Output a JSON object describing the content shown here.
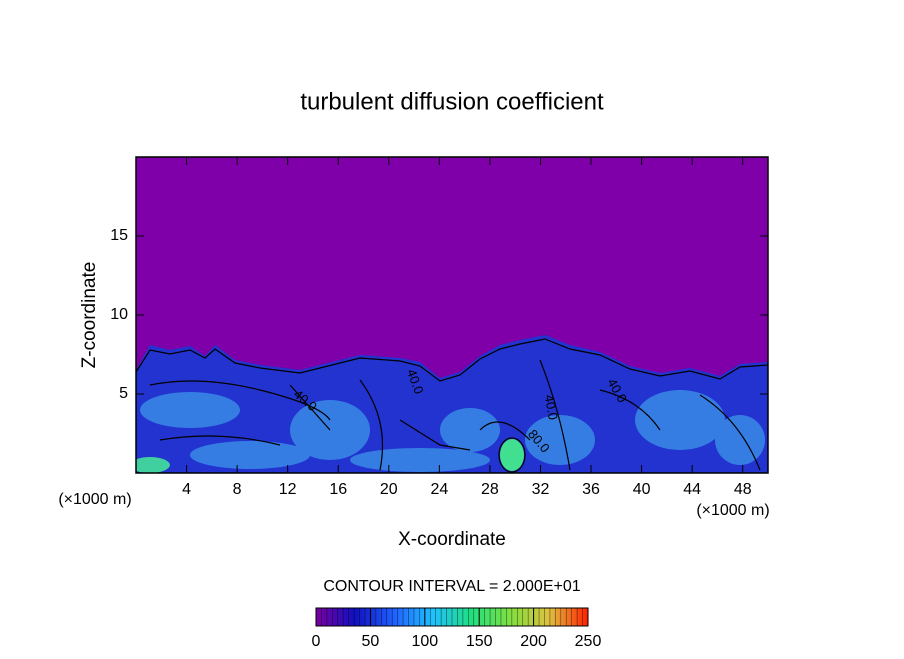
{
  "chart_data": {
    "type": "contour",
    "title": "turbulent diffusion coefficient",
    "xlabel": "X-coordinate",
    "ylabel": "Z-coordinate",
    "unit_labels": [
      "(×1000 m)",
      "(×1000 m)"
    ],
    "xlim": [
      0,
      50
    ],
    "xticks": [
      4,
      8,
      12,
      16,
      20,
      24,
      28,
      32,
      36,
      40,
      44,
      48
    ],
    "ylim": [
      0,
      20
    ],
    "yticks": [
      5,
      10,
      15
    ],
    "annotation": "CONTOUR INTERVAL = 2.000E+01",
    "contour_labels": [
      "40.0",
      "40.0",
      "40.0",
      "40.0",
      "80.0"
    ],
    "colorbar": {
      "lim": [
        0,
        250
      ],
      "ticks": [
        0,
        50,
        100,
        150,
        200,
        250
      ],
      "colors": [
        "#7a00a0",
        "#1010c0",
        "#2060ff",
        "#20c0ff",
        "#20e080",
        "#80e040",
        "#e0c040",
        "#ff2000"
      ]
    }
  }
}
